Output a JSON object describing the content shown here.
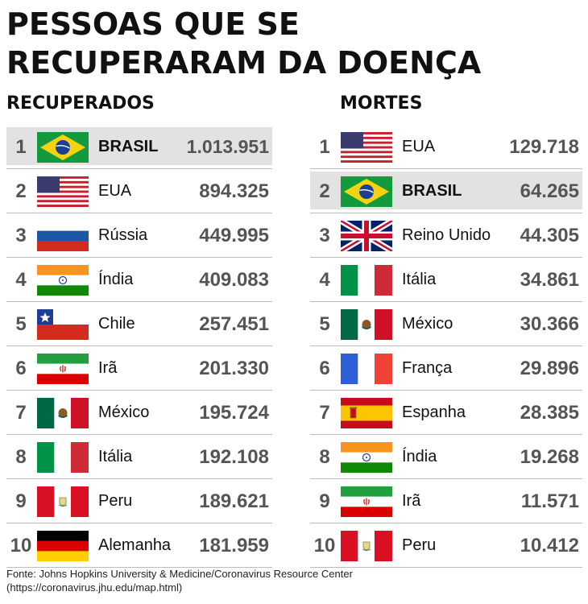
{
  "title_line1": "PESSOAS QUE SE",
  "title_line2": "RECUPERARAM DA DOENÇA",
  "recovered": {
    "heading": "RECUPERADOS",
    "rows": [
      {
        "rank": "1",
        "country": "BRASIL",
        "value": "1.013.951",
        "flag": "brazil-flag-icon"
      },
      {
        "rank": "2",
        "country": "EUA",
        "value": "894.325",
        "flag": "usa-flag-icon"
      },
      {
        "rank": "3",
        "country": "Rússia",
        "value": "449.995",
        "flag": "russia-flag-icon"
      },
      {
        "rank": "4",
        "country": "Índia",
        "value": "409.083",
        "flag": "india-flag-icon"
      },
      {
        "rank": "5",
        "country": "Chile",
        "value": "257.451",
        "flag": "chile-flag-icon"
      },
      {
        "rank": "6",
        "country": "Irã",
        "value": "201.330",
        "flag": "iran-flag-icon"
      },
      {
        "rank": "7",
        "country": "México",
        "value": "195.724",
        "flag": "mexico-flag-icon"
      },
      {
        "rank": "8",
        "country": "Itália",
        "value": "192.108",
        "flag": "italy-flag-icon"
      },
      {
        "rank": "9",
        "country": "Peru",
        "value": "189.621",
        "flag": "peru-flag-icon"
      },
      {
        "rank": "10",
        "country": "Alemanha",
        "value": "181.959",
        "flag": "germany-flag-icon"
      }
    ]
  },
  "deaths": {
    "heading": "MORTES",
    "rows": [
      {
        "rank": "1",
        "country": "EUA",
        "value": "129.718",
        "flag": "usa-flag-icon"
      },
      {
        "rank": "2",
        "country": "BRASIL",
        "value": "64.265",
        "flag": "brazil-flag-icon"
      },
      {
        "rank": "3",
        "country": "Reino Unido",
        "value": "44.305",
        "flag": "uk-flag-icon"
      },
      {
        "rank": "4",
        "country": "Itália",
        "value": "34.861",
        "flag": "italy-flag-icon"
      },
      {
        "rank": "5",
        "country": "México",
        "value": "30.366",
        "flag": "mexico-flag-icon"
      },
      {
        "rank": "6",
        "country": "França",
        "value": "29.896",
        "flag": "france-flag-icon"
      },
      {
        "rank": "7",
        "country": "Espanha",
        "value": "28.385",
        "flag": "spain-flag-icon"
      },
      {
        "rank": "8",
        "country": "Índia",
        "value": "19.268",
        "flag": "india-flag-icon"
      },
      {
        "rank": "9",
        "country": "Irã",
        "value": "11.571",
        "flag": "iran-flag-icon"
      },
      {
        "rank": "10",
        "country": "Peru",
        "value": "10.412",
        "flag": "peru-flag-icon"
      }
    ]
  },
  "highlight_country": "BRASIL",
  "colors": {
    "highlight_bg": "#e2e2e2",
    "value_text": "#555555",
    "divider": "#bdbdbd"
  },
  "source_line1": "Fonte: Johns Hopkins University & Medicine/Coronavirus Resource Center",
  "source_line2": "(https://coronavirus.jhu.edu/map.html)"
}
